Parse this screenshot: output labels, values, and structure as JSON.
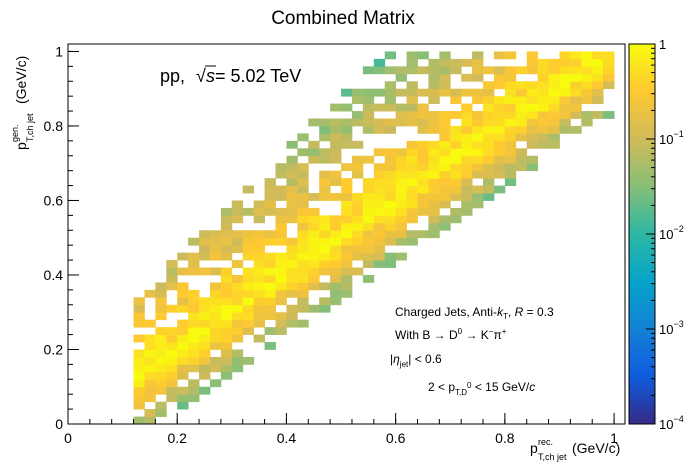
{
  "chart_data": {
    "type": "heatmap",
    "title": "Combined Matrix",
    "xlabel": {
      "main": "p",
      "sup": "rec.",
      "sub": "T,ch jet",
      "unit": "(GeV/c)"
    },
    "ylabel": {
      "main": "p",
      "sup": "gen.",
      "sub": "T,ch jet",
      "unit": "(GeV/c)"
    },
    "xlim": [
      0,
      1.02
    ],
    "ylim": [
      0,
      1.02
    ],
    "x_ticks": [
      0,
      0.2,
      0.4,
      0.6,
      0.8,
      1
    ],
    "y_ticks": [
      0,
      0.2,
      0.4,
      0.6,
      0.8,
      1
    ],
    "x_tick_labels": [
      "0",
      "0.2",
      "0.4",
      "0.6",
      "0.8",
      "1"
    ],
    "y_tick_labels": [
      "0",
      "0.2",
      "0.4",
      "0.6",
      "0.8",
      "1"
    ],
    "colorbar": {
      "scale": "log",
      "range": [
        0.0001,
        1
      ],
      "ticks": [
        {
          "value": 1,
          "base": "1",
          "exp": ""
        },
        {
          "value": 0.1,
          "base": "10",
          "exp": "−1"
        },
        {
          "value": 0.01,
          "base": "10",
          "exp": "−2"
        },
        {
          "value": 0.001,
          "base": "10",
          "exp": "−3"
        },
        {
          "value": 0.0001,
          "base": "10",
          "exp": "−4"
        }
      ],
      "palette": [
        "#352a87",
        "#0f5cdd",
        "#1481d6",
        "#06a4ca",
        "#2eb7a4",
        "#87bf77",
        "#d1bb59",
        "#fec832",
        "#f9fb0e"
      ]
    },
    "bin_width": 0.02,
    "bins": {
      "x_min": 0.12,
      "x_max": 1.0,
      "diagonal_profile": "values fall off roughly exponentially with distance from the diagonal, broader on the upper-left (gen > rec) side; bins below about 1e-4 are empty",
      "diagonal_value": 0.9,
      "upper_width": 0.11,
      "lower_width": 0.05,
      "support_upper": 0.45,
      "support_lower": 0.17,
      "seed": 7
    },
    "annotations": {
      "energy": {
        "system": "pp,",
        "sqrt": "√",
        "s": "s",
        "rest": " = 5.02 TeV"
      },
      "line1": {
        "prefix": "Charged Jets, Anti-",
        "k": "k",
        "k_sub": "T",
        "sep": ", ",
        "R": "R",
        "rest": " = 0.3"
      },
      "line2": {
        "prefix": "With B → D",
        "sup1": "0",
        "mid": " → K",
        "sup2": "−",
        "pi": "π",
        "sup3": "+"
      },
      "line3": {
        "bar_open": "|",
        "eta": "η",
        "eta_sub": "jet",
        "bar_close": "| < 0.6"
      },
      "line4": {
        "prefix": "2 < p",
        "sub": "T,D",
        "sub_sup": "0",
        "rest": " < 15 GeV/",
        "c": "c"
      }
    }
  }
}
